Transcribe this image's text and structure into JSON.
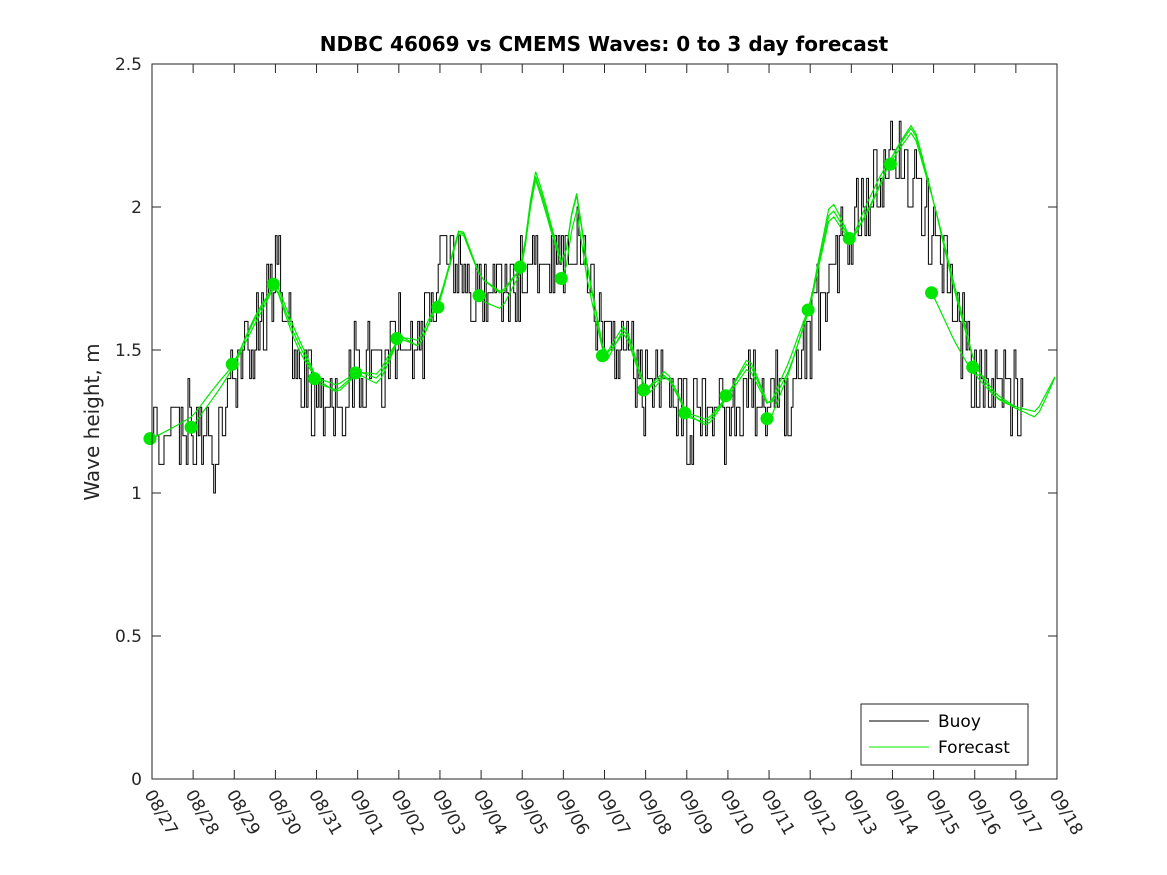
{
  "chart_data": {
    "type": "line",
    "title": "NDBC 46069 vs CMEMS Waves: 0 to 3 day forecast",
    "xlabel": "",
    "ylabel": "Wave height, m",
    "xlim": [
      0,
      22
    ],
    "ylim": [
      0,
      2.5
    ],
    "yticks": [
      0,
      0.5,
      1,
      1.5,
      2,
      2.5
    ],
    "ytick_labels": [
      "0",
      "0.5",
      "1",
      "1.5",
      "2",
      "2.5"
    ],
    "xtick_labels": [
      "08/27",
      "08/28",
      "08/29",
      "08/30",
      "08/31",
      "09/01",
      "09/02",
      "09/03",
      "09/04",
      "09/05",
      "09/06",
      "09/07",
      "09/08",
      "09/09",
      "09/10",
      "09/11",
      "09/12",
      "09/13",
      "09/14",
      "09/15",
      "09/16",
      "09/17",
      "09/18"
    ],
    "legend": {
      "position": "bottom-right",
      "entries": [
        {
          "label": "Buoy",
          "color": "#000000"
        },
        {
          "label": "Forecast",
          "color": "#00ee00"
        }
      ]
    },
    "colors": {
      "buoy": "#000000",
      "forecast": "#00e600",
      "marker": "#00e600"
    },
    "buoy_daily_profile": {
      "days": [
        0,
        0.5,
        1,
        1.5,
        2,
        2.5,
        3,
        3.5,
        4,
        4.5,
        5,
        5.5,
        6,
        6.5,
        7,
        7.5,
        8,
        8.5,
        9,
        9.5,
        10,
        10.5,
        11,
        11.5,
        12,
        12.5,
        13,
        13.5,
        14,
        14.5,
        15,
        15.5,
        16,
        16.5,
        17,
        17.5,
        18,
        18.5,
        19,
        19.5,
        20,
        20.5,
        21,
        21.2
      ],
      "heights": [
        1.2,
        1.2,
        1.25,
        1.15,
        1.45,
        1.55,
        1.8,
        1.5,
        1.35,
        1.3,
        1.45,
        1.4,
        1.55,
        1.5,
        1.8,
        1.85,
        1.65,
        1.7,
        1.75,
        1.85,
        1.8,
        1.85,
        1.5,
        1.55,
        1.35,
        1.45,
        1.25,
        1.3,
        1.2,
        1.35,
        1.35,
        1.3,
        1.55,
        1.75,
        1.95,
        2.05,
        2.15,
        2.1,
        1.9,
        1.65,
        1.4,
        1.4,
        1.35,
        1.25
      ]
    },
    "forecast_markers": {
      "x": [
        -0.05,
        0.95,
        1.95,
        2.95,
        3.95,
        4.95,
        5.95,
        6.95,
        7.95,
        8.95,
        9.95,
        10.95,
        11.95,
        12.95,
        13.95,
        14.95,
        15.95,
        16.95,
        17.95,
        18.95,
        19.95
      ],
      "y": [
        1.19,
        1.23,
        1.45,
        1.73,
        1.4,
        1.42,
        1.54,
        1.65,
        1.69,
        1.79,
        1.75,
        1.48,
        1.36,
        1.28,
        1.34,
        1.26,
        1.64,
        1.89,
        2.15,
        1.7,
        1.44
      ]
    },
    "forecast_envelope": {
      "days": [
        0,
        1,
        2,
        2.5,
        3,
        3.5,
        4,
        4.5,
        5,
        5.5,
        6,
        6.5,
        7,
        7.5,
        8,
        8.5,
        9,
        9.3,
        9.5,
        10,
        10.3,
        10.6,
        11,
        11.5,
        12,
        12.5,
        13,
        13.5,
        14,
        14.5,
        15,
        15.5,
        16,
        16.5,
        17,
        17.5,
        18,
        18.5,
        19,
        19.5,
        20,
        20.5,
        21,
        21.5,
        22
      ],
      "heights": [
        1.19,
        1.27,
        1.45,
        1.6,
        1.73,
        1.55,
        1.4,
        1.36,
        1.42,
        1.4,
        1.54,
        1.5,
        1.68,
        1.95,
        1.75,
        1.68,
        1.79,
        2.13,
        2.05,
        1.78,
        2.05,
        1.75,
        1.48,
        1.6,
        1.36,
        1.42,
        1.28,
        1.25,
        1.34,
        1.45,
        1.3,
        1.45,
        1.66,
        2.0,
        1.88,
        2.02,
        2.18,
        2.28,
        2.02,
        1.72,
        1.45,
        1.35,
        1.3,
        1.28,
        1.42
      ]
    }
  }
}
